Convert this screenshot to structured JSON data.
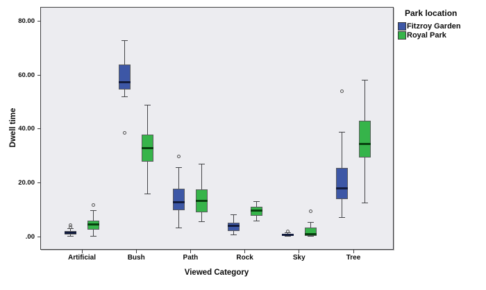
{
  "chart_data": {
    "type": "boxplot",
    "title": "",
    "xlabel": "Viewed Category",
    "ylabel": "Dwell time",
    "legend_title": "Park location",
    "legend_position": "top-right",
    "grid": false,
    "plot_background": "#ececf0",
    "categories": [
      "Artificial",
      "Bush",
      "Path",
      "Rock",
      "Sky",
      "Tree"
    ],
    "y_ticks": [
      {
        "value": 0,
        "label": ".00"
      },
      {
        "value": 20,
        "label": "20.00"
      },
      {
        "value": 40,
        "label": "40.00"
      },
      {
        "value": 60,
        "label": "60.00"
      },
      {
        "value": 80,
        "label": "80.00"
      }
    ],
    "ylim": [
      -4.5,
      85
    ],
    "series": [
      {
        "name": "Fitzroy Garden",
        "color": "#3d57a6",
        "median_color": "#131c3d",
        "boxes": [
          {
            "category": "Artificial",
            "whisker_low": 0.2,
            "q1": 0.9,
            "median": 1.5,
            "q3": 2.2,
            "whisker_high": 3.1,
            "outliers": [
              3.6,
              4.3
            ]
          },
          {
            "category": "Bush",
            "whisker_low": 51.9,
            "q1": 54.7,
            "median": 57.2,
            "q3": 63.9,
            "whisker_high": 72.7,
            "outliers": [
              38.5
            ]
          },
          {
            "category": "Path",
            "whisker_low": 3.4,
            "q1": 9.8,
            "median": 12.7,
            "q3": 17.8,
            "whisker_high": 25.6,
            "outliers": [
              29.9
            ]
          },
          {
            "category": "Rock",
            "whisker_low": 0.6,
            "q1": 2.1,
            "median": 4.0,
            "q3": 5.2,
            "whisker_high": 8.1,
            "outliers": []
          },
          {
            "category": "Sky",
            "whisker_low": 0.1,
            "q1": 0.3,
            "median": 0.6,
            "q3": 1.0,
            "whisker_high": 1.4,
            "outliers": [
              2.0
            ]
          },
          {
            "category": "Tree",
            "whisker_low": 7.2,
            "q1": 13.9,
            "median": 18.0,
            "q3": 25.5,
            "whisker_high": 38.8,
            "outliers": [
              53.9
            ]
          }
        ]
      },
      {
        "name": "Royal Park",
        "color": "#36b44a",
        "median_color": "#08400f",
        "boxes": [
          {
            "category": "Artificial",
            "whisker_low": 0.3,
            "q1": 2.6,
            "median": 4.7,
            "q3": 6.1,
            "whisker_high": 9.8,
            "outliers": [
              11.7
            ]
          },
          {
            "category": "Bush",
            "whisker_low": 15.9,
            "q1": 27.9,
            "median": 32.8,
            "q3": 37.8,
            "whisker_high": 48.9,
            "outliers": []
          },
          {
            "category": "Path",
            "whisker_low": 5.5,
            "q1": 9.1,
            "median": 13.4,
            "q3": 17.5,
            "whisker_high": 27.0,
            "outliers": []
          },
          {
            "category": "Rock",
            "whisker_low": 5.8,
            "q1": 7.8,
            "median": 9.7,
            "q3": 11.1,
            "whisker_high": 13.0,
            "outliers": []
          },
          {
            "category": "Sky",
            "whisker_low": 0.1,
            "q1": 0.4,
            "median": 1.1,
            "q3": 3.3,
            "whisker_high": 5.4,
            "outliers": [
              9.5
            ]
          },
          {
            "category": "Tree",
            "whisker_low": 12.6,
            "q1": 29.3,
            "median": 34.3,
            "q3": 43.1,
            "whisker_high": 58.1,
            "outliers": []
          }
        ]
      }
    ]
  }
}
